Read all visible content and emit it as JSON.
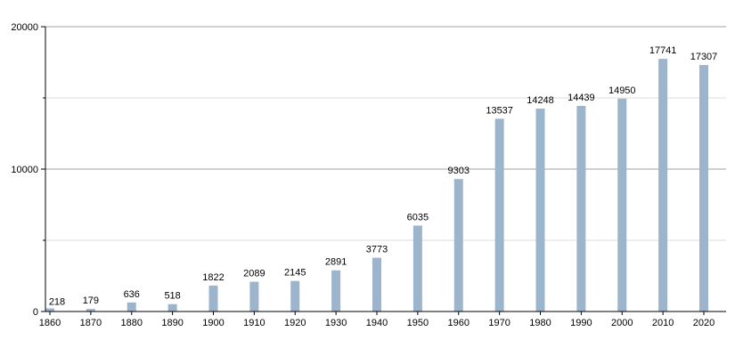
{
  "chart_data": {
    "type": "bar",
    "categories": [
      "1860",
      "1870",
      "1880",
      "1890",
      "1900",
      "1910",
      "1920",
      "1930",
      "1940",
      "1950",
      "1960",
      "1970",
      "1980",
      "1990",
      "2000",
      "2010",
      "2020"
    ],
    "values": [
      218,
      179,
      636,
      518,
      1822,
      2089,
      2145,
      2891,
      3773,
      6035,
      9303,
      13537,
      14248,
      14439,
      14950,
      17741,
      17307
    ],
    "title": "",
    "xlabel": "",
    "ylabel": "",
    "ylim": [
      0,
      20000
    ],
    "y_major_ticks": [
      0,
      10000,
      20000
    ],
    "y_minor_ticks": [
      5000,
      15000
    ],
    "grid": true,
    "legend": "none",
    "colors": {
      "bar": "#9cb4cc",
      "major_grid": "#a0a0a0",
      "minor_grid": "#dddddd",
      "axis": "#000000"
    }
  }
}
